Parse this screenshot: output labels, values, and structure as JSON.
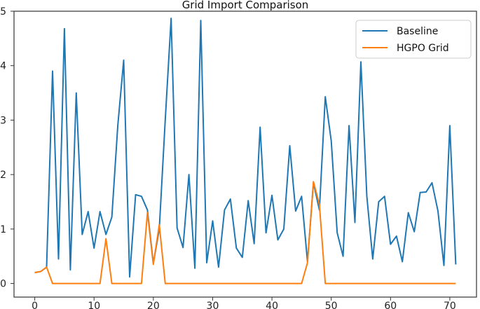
{
  "chart_data": {
    "type": "line",
    "title": "Grid Import Comparison",
    "xlabel": "",
    "ylabel": "",
    "xlim": [
      -3.5,
      74.5
    ],
    "ylim": [
      -0.25,
      5.0
    ],
    "xticks": [
      0,
      10,
      20,
      30,
      40,
      50,
      60,
      70
    ],
    "yticks": [
      0,
      1,
      2,
      3,
      4,
      5
    ],
    "grid": false,
    "legend_position": "top-right",
    "x": [
      0,
      1,
      2,
      3,
      4,
      5,
      6,
      7,
      8,
      9,
      10,
      11,
      12,
      13,
      14,
      15,
      16,
      17,
      18,
      19,
      20,
      21,
      22,
      23,
      24,
      25,
      26,
      27,
      28,
      29,
      30,
      31,
      32,
      33,
      34,
      35,
      36,
      37,
      38,
      39,
      40,
      41,
      42,
      43,
      44,
      45,
      46,
      47,
      48,
      49,
      50,
      51,
      52,
      53,
      54,
      55,
      56,
      57,
      58,
      59,
      60,
      61,
      62,
      63,
      64,
      65,
      66,
      67,
      68,
      69,
      70,
      71
    ],
    "series": [
      {
        "name": "Baseline",
        "color": "#1f77b4",
        "values": [
          0.2,
          0.22,
          0.3,
          3.9,
          0.45,
          4.68,
          0.25,
          3.5,
          0.9,
          1.32,
          0.65,
          1.32,
          0.9,
          1.22,
          2.9,
          4.1,
          0.12,
          1.63,
          1.6,
          1.35,
          0.37,
          1.0,
          3.0,
          4.87,
          1.02,
          0.66,
          2.0,
          0.28,
          4.83,
          0.38,
          1.15,
          0.3,
          1.35,
          1.55,
          0.65,
          0.48,
          1.52,
          0.73,
          2.87,
          0.93,
          1.62,
          0.8,
          1.0,
          2.53,
          1.33,
          1.6,
          0.4,
          1.85,
          1.35,
          3.43,
          2.62,
          0.93,
          0.5,
          2.9,
          1.12,
          4.07,
          1.6,
          0.45,
          1.5,
          1.6,
          0.72,
          0.87,
          0.4,
          1.3,
          0.95,
          1.67,
          1.68,
          1.85,
          1.33,
          0.33,
          2.9,
          0.35
        ]
      },
      {
        "name": "HGPO Grid",
        "color": "#ff7f0e",
        "values": [
          0.2,
          0.22,
          0.3,
          0,
          0,
          0,
          0,
          0,
          0,
          0,
          0,
          0,
          0.82,
          0,
          0,
          0,
          0,
          0,
          0,
          1.3,
          0.35,
          1.08,
          0,
          0,
          0,
          0,
          0,
          0,
          0,
          0,
          0,
          0,
          0,
          0,
          0,
          0,
          0,
          0,
          0,
          0,
          0,
          0,
          0,
          0,
          0,
          0,
          0.38,
          1.87,
          1.45,
          0,
          0,
          0,
          0,
          0,
          0,
          0,
          0,
          0,
          0,
          0,
          0,
          0,
          0,
          0,
          0,
          0,
          0,
          0,
          0,
          0,
          0,
          0
        ]
      }
    ]
  }
}
